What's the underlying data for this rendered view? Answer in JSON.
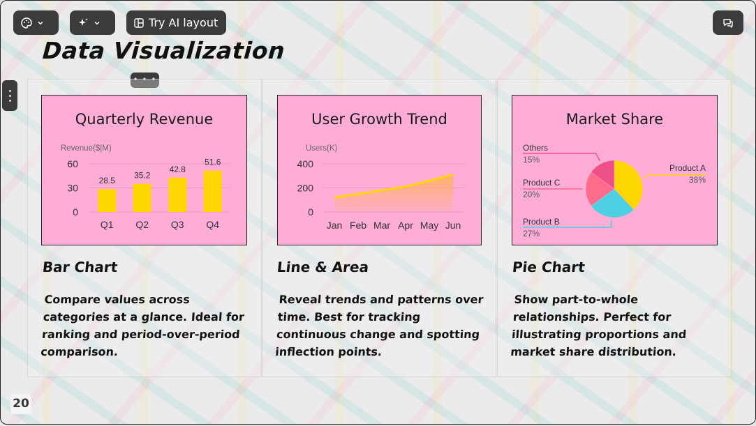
{
  "toolbar": {
    "theme_icon": "palette-icon",
    "ai_icon": "sparkle-icon",
    "try_ai_label": "Try AI layout",
    "comment_icon": "comment-icon"
  },
  "slide": {
    "title": "Data Visualization",
    "page_number": "20"
  },
  "columns": [
    {
      "heading": "Bar Chart",
      "description": "Compare values across categories at a glance. Ideal for ranking and period-over-period comparison."
    },
    {
      "heading": "Line & Area",
      "description": "Reveal trends and patterns over time. Best for tracking continuous change and spotting inflection points."
    },
    {
      "heading": "Pie Chart",
      "description": "Show part-to-whole relationships. Perfect for illustrating proportions and market share distribution."
    }
  ],
  "colors": {
    "card_bg": "#ffadd6",
    "bar": "#ffd700",
    "line": "#ffd700",
    "pie_a": "#ffd700",
    "pie_b": "#4dd0e1",
    "pie_c": "#ff6b8a",
    "pie_others": "#f0508a"
  },
  "chart_data": [
    {
      "type": "bar",
      "title": "Quarterly Revenue",
      "ylabel": "Revenue($|M)",
      "categories": [
        "Q1",
        "Q2",
        "Q3",
        "Q4"
      ],
      "values": [
        28.5,
        35.2,
        42.8,
        51.6
      ],
      "yticks": [
        "60",
        "30",
        "0"
      ],
      "ylim": [
        0,
        60
      ],
      "legend": "none"
    },
    {
      "type": "area",
      "title": "User Growth Trend",
      "ylabel": "Users(K)",
      "categories": [
        "Jan",
        "Feb",
        "Mar",
        "Apr",
        "May",
        "Jun"
      ],
      "values": [
        120,
        150,
        180,
        210,
        260,
        310
      ],
      "yticks": [
        "400",
        "200",
        "0"
      ],
      "ylim": [
        0,
        400
      ],
      "legend": "none"
    },
    {
      "type": "pie",
      "title": "Market Share",
      "slices": [
        {
          "label": "Product A",
          "percent_label": "38%",
          "value": 38
        },
        {
          "label": "Product B",
          "percent_label": "27%",
          "value": 27
        },
        {
          "label": "Product C",
          "percent_label": "20%",
          "value": 20
        },
        {
          "label": "Others",
          "percent_label": "15%",
          "value": 15
        }
      ]
    }
  ]
}
